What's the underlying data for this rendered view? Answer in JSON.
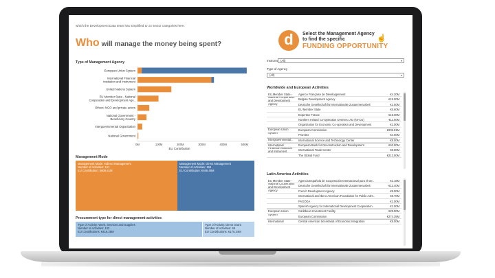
{
  "intro_text": "which the Development Data team has simplified to 14 sector categories here.",
  "headline": {
    "who": "Who",
    "rest": "will manage the money being spent?"
  },
  "cta": {
    "logo_letter": "d",
    "line1": "Select the Management Agency",
    "line2": "to find the specific",
    "title": "FUNDING OPPORTUNITY"
  },
  "sections": {
    "type_of_agency": "Type of Management Agency",
    "management_mode": "Management Mode",
    "procurement": "Procurement type for direct management activities",
    "worldwide": "Worldwide and European Activities",
    "latin_america": "Latin America Activities"
  },
  "chart_data": {
    "type": "bar",
    "stacked": true,
    "orientation": "horizontal",
    "categories": [
      "European Union System",
      "International Financial Institution and Instrument",
      "United Nations System",
      "EU Member State - National Cooperation and Development Age..",
      "Others: NGO and private actors",
      "National Government - Beneficiary Country",
      "Intergovernmental Organization",
      "National Government"
    ],
    "series": [
      {
        "values": [
          20,
          345,
          158,
          98,
          55,
          42,
          22,
          4
        ]
      },
      {
        "values": [
          490,
          12,
          0,
          0,
          0,
          0,
          0,
          0
        ]
      }
    ],
    "x_ticks": [
      "0M",
      "100M",
      "200M",
      "300M",
      "400M",
      "500M"
    ],
    "xlim": [
      0,
      520
    ],
    "xlabel": "EU Contribution",
    "colors": {
      "orange": "#e98f3b",
      "blue": "#4b76a8"
    }
  },
  "management_mode": {
    "indirect": {
      "line1": "Management Mode: Indirect Management",
      "line2": "Number of Activities: 101",
      "line3": "EU Contribution: €606.61M"
    },
    "direct": {
      "line1": "Management Mode: Direct Management",
      "line2": "Number of Activities: 164",
      "line3": "EU Contribution: €466.48M"
    }
  },
  "procurement": {
    "works": {
      "line1": "Type of Activity: Work, Services and Supplies",
      "line2": "Number of Activities: 132",
      "line3": "EU Contributions: €416.28M"
    },
    "grant": {
      "line1": "Type of Activity: Direct Grant",
      "line2": "Number of Activities: 48",
      "line3": "EU Contributions: €175.24M"
    }
  },
  "filters": {
    "instrument_label": "Instrument",
    "instrument_value": "(All)",
    "agency_label": "Type of Agency",
    "agency_value": "(All)"
  },
  "worldwide_groups": [
    {
      "label": "EU Member State - National Cooperation and Development Agency",
      "rows": [
        {
          "org": "Agence Française de Développement",
          "value": "€4.20M"
        },
        {
          "org": "Belgian Development Agency",
          "value": "€15.00M"
        },
        {
          "org": "Deutsche Gesellschaft für Internationale Zusammenarbeit",
          "value": "€1.50M"
        },
        {
          "org": "EU Member State",
          "value": "€5.60M"
        },
        {
          "org": "Expertise France",
          "value": "€15.00M"
        },
        {
          "org": "Northern Ireland Co-Operation Overses LTD (NI-CO)",
          "value": "€11.00M"
        },
        {
          "org": "Organization for Economic Co-operation and Development",
          "value": "€1.00M"
        }
      ]
    },
    {
      "label": "European Union System",
      "rows": [
        {
          "org": "European Commission",
          "value": "€206.81M"
        },
        {
          "org": "Promtex",
          "value": "€4.00M"
        }
      ]
    },
    {
      "label": "Intergovernmental...",
      "rows": [
        {
          "org": "International Science and Technology Center",
          "value": "€8.00M"
        }
      ]
    },
    {
      "label": "International Financial Institution and Instrument",
      "rows": [
        {
          "org": "European Bank for Reconstruction and Development",
          "value": "€40.00M"
        },
        {
          "org": "International Trade Center",
          "value": "€8.00M"
        },
        {
          "org": "The Global Fund",
          "value": "€213.00M"
        }
      ]
    }
  ],
  "latin_groups": [
    {
      "label": "EU Member State - National Cooperation and Development Agency",
      "rows": [
        {
          "org": "Agencia Española de Cooperación Internacional para el De..",
          "value": "€1.18M"
        },
        {
          "org": "Deutsche Gesellschaft für Internationale Zusammenarbeit",
          "value": "€12.40M"
        },
        {
          "org": "French Development Agency",
          "value": "€9.00M"
        },
        {
          "org": "International and Ibero-American Foundation for Public Adm..",
          "value": "€5.70M"
        },
        {
          "org": "PAGODA",
          "value": "€1.00M"
        },
        {
          "org": "Spanish Agency for International Development Cooperation",
          "value": "€1.00M"
        }
      ]
    },
    {
      "label": "European Union System",
      "rows": [
        {
          "org": "Caribbean Investment Facility",
          "value": "€29.00M"
        },
        {
          "org": "European Commission",
          "value": "€274.35M"
        }
      ]
    },
    {
      "label": "International",
      "rows": [
        {
          "org": "Central American Secretariat of Economic Integration",
          "value": "€5.00M"
        }
      ]
    }
  ]
}
